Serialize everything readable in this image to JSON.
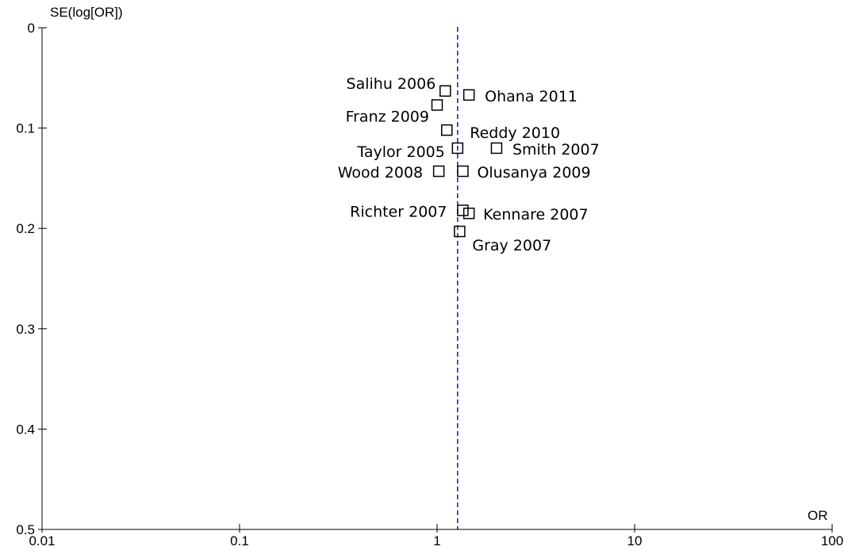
{
  "chart_data": {
    "type": "scatter",
    "title": "",
    "xlabel": "OR",
    "ylabel": "SE(log[OR])",
    "x_scale": "log",
    "xlim": [
      0.01,
      100
    ],
    "ylim": [
      0,
      0.5
    ],
    "y_inverted": true,
    "x_ticks": [
      "0.01",
      "0.1",
      "1",
      "10",
      "100"
    ],
    "y_ticks": [
      "0",
      "0.1",
      "0.2",
      "0.3",
      "0.4",
      "0.5"
    ],
    "reference_line": {
      "x": 1.27,
      "style": "dashed",
      "color": "#1f1fd0"
    },
    "points": [
      {
        "label": "Salihu 2006",
        "x": 1.1,
        "y": 0.063
      },
      {
        "label": "Ohana 2011",
        "x": 1.45,
        "y": 0.067
      },
      {
        "label": "Franz 2009",
        "x": 1.0,
        "y": 0.077
      },
      {
        "label": "Reddy 2010",
        "x": 1.12,
        "y": 0.102
      },
      {
        "label": "Taylor 2005",
        "x": 1.27,
        "y": 0.12
      },
      {
        "label": "Smith 2007",
        "x": 2.0,
        "y": 0.12
      },
      {
        "label": "Wood 2008",
        "x": 1.02,
        "y": 0.143
      },
      {
        "label": "Olusanya 2009",
        "x": 1.35,
        "y": 0.143
      },
      {
        "label": "Richter 2007",
        "x": 1.35,
        "y": 0.182
      },
      {
        "label": "Kennare 2007",
        "x": 1.45,
        "y": 0.185
      },
      {
        "label": "Gray 2007",
        "x": 1.3,
        "y": 0.203
      }
    ]
  }
}
